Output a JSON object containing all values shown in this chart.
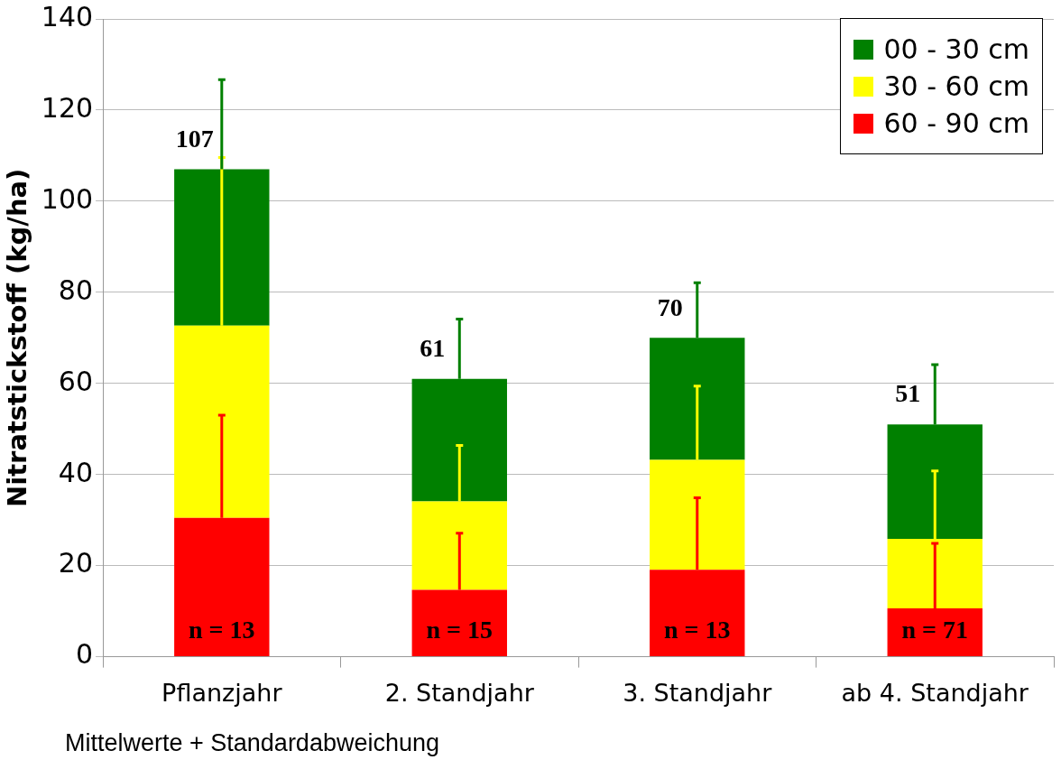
{
  "chart_data": {
    "type": "bar",
    "stacked": true,
    "ylabel": "Nitratstickstoff (kg/ha)",
    "categories": [
      "Pflanzjahr",
      "2. Standjahr",
      "3. Standjahr",
      "ab 4. Standjahr"
    ],
    "series": [
      {
        "name": "60 - 90 cm",
        "color": "#ff0000",
        "values": [
          30.5,
          14.7,
          19.1,
          10.6
        ],
        "errors": [
          [
            30.5,
            53
          ],
          [
            14.7,
            27.1
          ],
          [
            19.1,
            34.9
          ],
          [
            10.6,
            24.9
          ]
        ]
      },
      {
        "name": "30 - 60 cm",
        "color": "#ffff00",
        "values": [
          42.2,
          19.4,
          24.1,
          15.3
        ],
        "errors": [
          [
            72.7,
            109.6
          ],
          [
            34.1,
            46.4
          ],
          [
            43.2,
            59.4
          ],
          [
            25.9,
            40.8
          ]
        ]
      },
      {
        "name": "00 - 30 cm",
        "color": "#008000",
        "values": [
          34.3,
          26.9,
          26.8,
          25.1
        ],
        "errors": [
          [
            107,
            126.7
          ],
          [
            61,
            74.1
          ],
          [
            70,
            82.1
          ],
          [
            51,
            64.1
          ]
        ]
      }
    ],
    "totals": [
      "107",
      "61",
      "70",
      "51"
    ],
    "ylim": [
      0,
      140
    ],
    "yticks": [
      0,
      20,
      40,
      60,
      80,
      100,
      120,
      140
    ],
    "grid": "y",
    "legend": "top right",
    "annotations": [
      "n = 13",
      "n = 15",
      "n = 13",
      "n = 71",
      "Mittelwerte + Standardabweichung"
    ]
  }
}
